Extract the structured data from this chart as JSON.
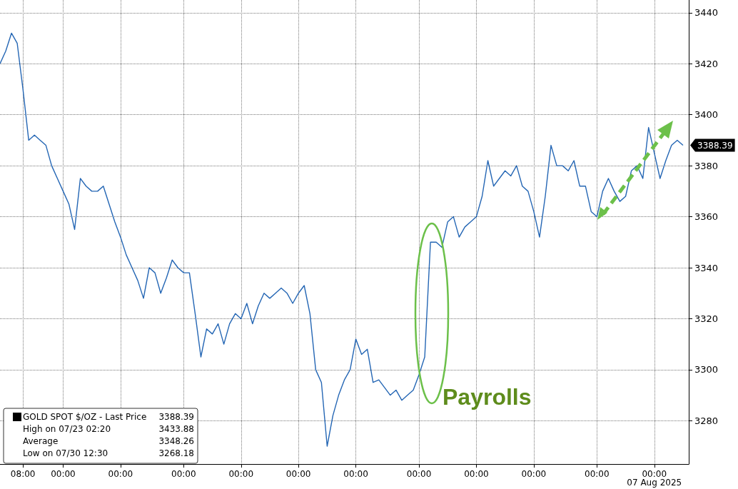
{
  "chart_data": {
    "type": "line",
    "categories": [
      null,
      null,
      null,
      null,
      "08:00",
      null,
      null,
      null,
      null,
      null,
      null,
      "00:00",
      null,
      null,
      null,
      null,
      null,
      null,
      null,
      null,
      null,
      "00:00",
      null,
      null,
      null,
      null,
      null,
      null,
      null,
      null,
      null,
      null,
      "00:00",
      null,
      null,
      null,
      null,
      null,
      null,
      null,
      null,
      null,
      "00:00",
      null,
      null,
      null,
      null,
      null,
      null,
      null,
      null,
      null,
      "00:00",
      null,
      null,
      null,
      null,
      null,
      null,
      null,
      null,
      null,
      "00:00",
      null,
      null,
      null,
      null,
      null,
      null,
      null,
      null,
      null,
      null,
      "00:00",
      null,
      null,
      null,
      null,
      null,
      null,
      null,
      null,
      null,
      "00:00",
      null,
      null,
      null,
      null,
      null,
      null,
      null,
      null,
      null,
      "00:00",
      null,
      null,
      null,
      null,
      null,
      null,
      null,
      null,
      null,
      null,
      "00:00",
      null,
      null,
      null,
      null,
      null,
      null,
      null,
      null,
      null,
      "00:00\n07 Aug 2025",
      null,
      null,
      null,
      null,
      null,
      null
    ],
    "series": [
      {
        "color": "#2466b4",
        "values": [
          3420,
          3425,
          3432,
          3428,
          3410,
          3390,
          3392,
          3390,
          3388,
          3380,
          3375,
          3370,
          3365,
          3355,
          3375,
          3372,
          3370,
          3370,
          3372,
          3365,
          3358,
          3352,
          3345,
          3340,
          3335,
          3328,
          3340,
          3338,
          3330,
          3336,
          3343,
          3340,
          3338,
          3338,
          3322,
          3305,
          3316,
          3314,
          3318,
          3310,
          3318,
          3322,
          3320,
          3326,
          3318,
          3325,
          3330,
          3328,
          3330,
          3332,
          3330,
          3326,
          3330,
          3333,
          3322,
          3300,
          3295,
          3270,
          3282,
          3290,
          3296,
          3300,
          3312,
          3306,
          3308,
          3295,
          3296,
          3293,
          3290,
          3292,
          3288,
          3290,
          3292,
          3298,
          3305,
          3350,
          3350,
          3348,
          3358,
          3360,
          3352,
          3356,
          3358,
          3360,
          3368,
          3382,
          3372,
          3375,
          3378,
          3376,
          3380,
          3372,
          3370,
          3362,
          3352,
          3368,
          3388,
          3380,
          3380,
          3378,
          3382,
          3372,
          3372,
          3362,
          3360,
          3370,
          3375,
          3370,
          3366,
          3368,
          3378,
          3380,
          3375,
          3395,
          3385,
          3375,
          3382,
          3388,
          3390,
          3388,
          null
        ]
      }
    ],
    "ylim": [
      3263,
      3445
    ],
    "yticks": [
      3280,
      3300,
      3320,
      3340,
      3360,
      3380,
      3400,
      3420,
      3440
    ],
    "grid": true,
    "marker": "none",
    "line_style": "solid",
    "annotations": [
      "GOLD SPOT $/OZ - Last Price",
      "3388.39",
      "High on 07/23 02:20",
      "3433.88",
      "Average",
      "3348.26",
      "Low on 07/30 12:30",
      "3268.18",
      "3388.39",
      "Payrolls"
    ]
  }
}
